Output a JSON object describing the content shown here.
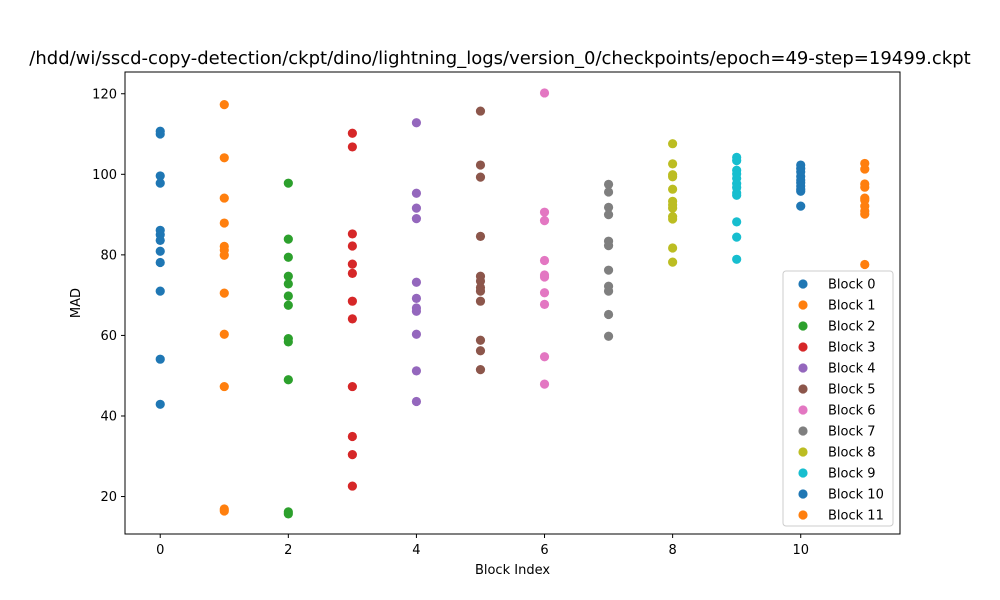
{
  "chart_data": {
    "type": "scatter",
    "title": "/hdd/wi/sscd-copy-detection/ckpt/dino/lightning_logs/version_0/checkpoints/epoch=49-step=19499.ckpt",
    "xlabel": "Block Index",
    "ylabel": "MAD",
    "xlim": [
      -0.55,
      11.55
    ],
    "ylim": [
      10.7,
      125.4
    ],
    "xticks": [
      "0",
      "2",
      "4",
      "6",
      "8",
      "10"
    ],
    "yticks": [
      "20",
      "40",
      "60",
      "80",
      "100",
      "120"
    ],
    "xtick_values": [
      0,
      2,
      4,
      6,
      8,
      10
    ],
    "ytick_values": [
      20,
      40,
      60,
      80,
      100,
      120
    ],
    "grid": false,
    "legend_position": "lower-right",
    "series": [
      {
        "name": "Block 0",
        "color": "#1f77b4",
        "x": 0,
        "values": [
          110.7,
          110.0,
          99.6,
          97.8,
          86.1,
          85.0,
          83.6,
          80.9,
          78.1,
          71.0,
          54.1,
          42.9
        ]
      },
      {
        "name": "Block 1",
        "color": "#ff7f0e",
        "x": 1,
        "values": [
          117.3,
          104.1,
          94.1,
          87.9,
          82.1,
          81.2,
          79.9,
          70.5,
          60.3,
          47.3,
          16.9,
          16.4
        ]
      },
      {
        "name": "Block 2",
        "color": "#2ca02c",
        "x": 2,
        "values": [
          97.8,
          83.9,
          79.4,
          74.7,
          72.8,
          69.8,
          67.5,
          59.2,
          58.4,
          49.0,
          16.2,
          15.7
        ]
      },
      {
        "name": "Block 3",
        "color": "#d62728",
        "x": 3,
        "values": [
          110.2,
          106.8,
          85.2,
          82.2,
          77.7,
          75.4,
          68.5,
          64.1,
          47.3,
          34.9,
          30.4,
          22.6
        ]
      },
      {
        "name": "Block 4",
        "color": "#9467bd",
        "x": 4,
        "values": [
          112.8,
          95.3,
          91.6,
          89.0,
          73.2,
          69.2,
          66.8,
          66.0,
          60.3,
          51.2,
          43.6
        ]
      },
      {
        "name": "Block 5",
        "color": "#8c564b",
        "x": 5,
        "values": [
          115.7,
          102.3,
          99.3,
          84.6,
          74.7,
          73.5,
          71.9,
          71.0,
          68.5,
          58.8,
          56.2,
          51.5
        ]
      },
      {
        "name": "Block 6",
        "color": "#e377c2",
        "x": 6,
        "values": [
          120.2,
          90.6,
          88.5,
          78.6,
          75.0,
          74.5,
          70.6,
          67.7,
          54.7,
          47.9
        ]
      },
      {
        "name": "Block 7",
        "color": "#7f7f7f",
        "x": 7,
        "values": [
          97.5,
          95.6,
          91.8,
          90.0,
          83.4,
          82.3,
          76.2,
          72.2,
          71.0,
          65.2,
          59.8
        ]
      },
      {
        "name": "Block 8",
        "color": "#bcbd22",
        "x": 8,
        "values": [
          107.6,
          102.6,
          99.9,
          99.4,
          96.3,
          93.3,
          92.4,
          91.6,
          89.5,
          88.9,
          81.7,
          78.2
        ]
      },
      {
        "name": "Block 9",
        "color": "#17becf",
        "x": 9,
        "values": [
          104.2,
          103.4,
          101.0,
          100.1,
          99.0,
          97.7,
          96.7,
          95.4,
          94.8,
          88.2,
          84.4,
          78.9
        ]
      },
      {
        "name": "Block 10",
        "color": "#1f77b4",
        "x": 10,
        "values": [
          102.3,
          101.4,
          100.6,
          99.5,
          98.6,
          97.9,
          97.1,
          96.3,
          95.8,
          92.1
        ]
      },
      {
        "name": "Block 11",
        "color": "#ff7f0e",
        "x": 11,
        "values": [
          102.7,
          101.3,
          97.6,
          96.8,
          94.1,
          93.6,
          92.1,
          90.9,
          90.1,
          77.6
        ]
      }
    ]
  }
}
